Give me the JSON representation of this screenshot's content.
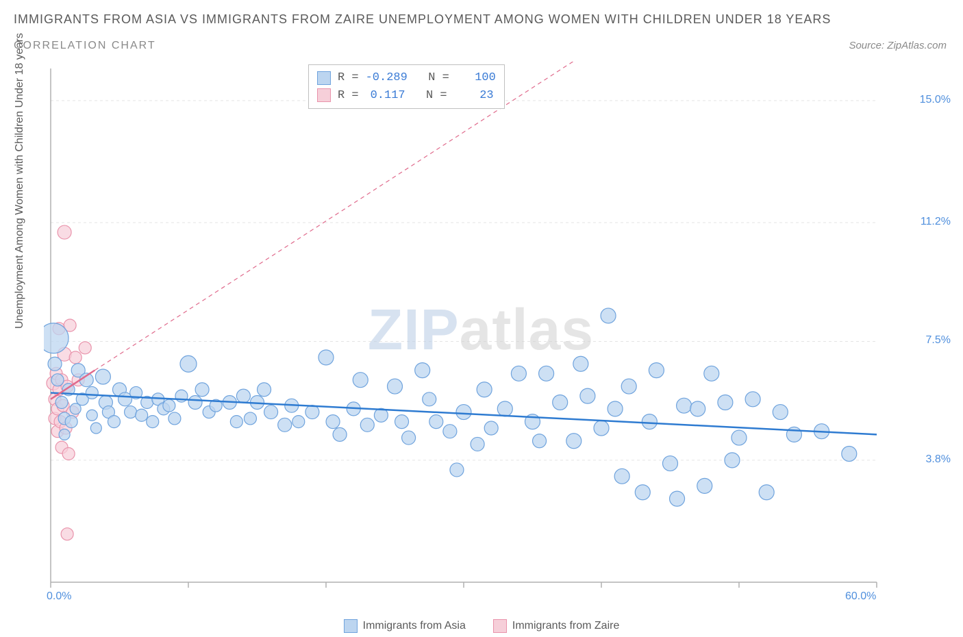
{
  "title": "IMMIGRANTS FROM ASIA VS IMMIGRANTS FROM ZAIRE UNEMPLOYMENT AMONG WOMEN WITH CHILDREN UNDER 18 YEARS",
  "subtitle": "CORRELATION CHART",
  "source": "Source: ZipAtlas.com",
  "y_axis_label": "Unemployment Among Women with Children Under 18 years",
  "watermark": {
    "part1": "ZIP",
    "part2": "atlas"
  },
  "chart": {
    "type": "scatter",
    "background_color": "#ffffff",
    "grid_color": "#e5e5e5",
    "axis_color": "#b0b0b0",
    "xlim": [
      0,
      60
    ],
    "ylim": [
      0,
      16
    ],
    "x_ticks": [
      0,
      10,
      20,
      30,
      40,
      50,
      60
    ],
    "x_tick_labels": [
      "0.0%",
      "",
      "",
      "",
      "",
      "",
      "60.0%"
    ],
    "y_ticks": [
      3.8,
      7.5,
      11.2,
      15.0
    ],
    "y_tick_labels": [
      "3.8%",
      "7.5%",
      "11.2%",
      "15.0%"
    ],
    "tick_label_color": "#4f8fdd",
    "tick_label_fontsize": 16,
    "series": [
      {
        "name": "Immigrants from Asia",
        "marker_fill": "#bcd5f0",
        "marker_stroke": "#6fa3dd",
        "marker_opacity": 0.75,
        "line_color": "#2e7bd1",
        "line_width": 2.5,
        "line_dash": "none",
        "trend": {
          "x1": 0,
          "y1": 5.9,
          "x2": 60,
          "y2": 4.6
        },
        "R": "-0.289",
        "N": "100",
        "points": [
          {
            "x": 0.2,
            "y": 7.6,
            "r": 22
          },
          {
            "x": 0.5,
            "y": 6.3,
            "r": 9
          },
          {
            "x": 0.8,
            "y": 5.6,
            "r": 9
          },
          {
            "x": 0.3,
            "y": 6.8,
            "r": 10
          },
          {
            "x": 1.0,
            "y": 5.1,
            "r": 9
          },
          {
            "x": 1.0,
            "y": 4.6,
            "r": 8
          },
          {
            "x": 1.3,
            "y": 6.0,
            "r": 9
          },
          {
            "x": 1.5,
            "y": 5.0,
            "r": 9
          },
          {
            "x": 1.8,
            "y": 5.4,
            "r": 8
          },
          {
            "x": 2.0,
            "y": 6.6,
            "r": 10
          },
          {
            "x": 2.3,
            "y": 5.7,
            "r": 9
          },
          {
            "x": 2.6,
            "y": 6.3,
            "r": 10
          },
          {
            "x": 3.0,
            "y": 5.9,
            "r": 9
          },
          {
            "x": 3.0,
            "y": 5.2,
            "r": 8
          },
          {
            "x": 3.3,
            "y": 4.8,
            "r": 8
          },
          {
            "x": 3.8,
            "y": 6.4,
            "r": 11
          },
          {
            "x": 4.0,
            "y": 5.6,
            "r": 10
          },
          {
            "x": 4.2,
            "y": 5.3,
            "r": 9
          },
          {
            "x": 4.6,
            "y": 5.0,
            "r": 9
          },
          {
            "x": 5.0,
            "y": 6.0,
            "r": 10
          },
          {
            "x": 5.4,
            "y": 5.7,
            "r": 10
          },
          {
            "x": 5.8,
            "y": 5.3,
            "r": 9
          },
          {
            "x": 6.2,
            "y": 5.9,
            "r": 9
          },
          {
            "x": 6.6,
            "y": 5.2,
            "r": 9
          },
          {
            "x": 7.0,
            "y": 5.6,
            "r": 9
          },
          {
            "x": 7.4,
            "y": 5.0,
            "r": 9
          },
          {
            "x": 7.8,
            "y": 5.7,
            "r": 9
          },
          {
            "x": 8.2,
            "y": 5.4,
            "r": 9
          },
          {
            "x": 8.6,
            "y": 5.5,
            "r": 9
          },
          {
            "x": 9.0,
            "y": 5.1,
            "r": 9
          },
          {
            "x": 9.5,
            "y": 5.8,
            "r": 9
          },
          {
            "x": 10.0,
            "y": 6.8,
            "r": 12
          },
          {
            "x": 10.5,
            "y": 5.6,
            "r": 10
          },
          {
            "x": 11.0,
            "y": 6.0,
            "r": 10
          },
          {
            "x": 11.5,
            "y": 5.3,
            "r": 9
          },
          {
            "x": 12.0,
            "y": 5.5,
            "r": 9
          },
          {
            "x": 13.0,
            "y": 5.6,
            "r": 10
          },
          {
            "x": 13.5,
            "y": 5.0,
            "r": 9
          },
          {
            "x": 14.0,
            "y": 5.8,
            "r": 10
          },
          {
            "x": 14.5,
            "y": 5.1,
            "r": 9
          },
          {
            "x": 15.0,
            "y": 5.6,
            "r": 10
          },
          {
            "x": 15.5,
            "y": 6.0,
            "r": 10
          },
          {
            "x": 16.0,
            "y": 5.3,
            "r": 10
          },
          {
            "x": 17.0,
            "y": 4.9,
            "r": 10
          },
          {
            "x": 17.5,
            "y": 5.5,
            "r": 10
          },
          {
            "x": 18.0,
            "y": 5.0,
            "r": 9
          },
          {
            "x": 19.0,
            "y": 5.3,
            "r": 10
          },
          {
            "x": 20.0,
            "y": 7.0,
            "r": 11
          },
          {
            "x": 20.5,
            "y": 5.0,
            "r": 10
          },
          {
            "x": 21.0,
            "y": 4.6,
            "r": 10
          },
          {
            "x": 22.0,
            "y": 5.4,
            "r": 10
          },
          {
            "x": 22.5,
            "y": 6.3,
            "r": 11
          },
          {
            "x": 23.0,
            "y": 4.9,
            "r": 10
          },
          {
            "x": 24.0,
            "y": 5.2,
            "r": 10
          },
          {
            "x": 25.0,
            "y": 6.1,
            "r": 11
          },
          {
            "x": 25.5,
            "y": 5.0,
            "r": 10
          },
          {
            "x": 26.0,
            "y": 4.5,
            "r": 10
          },
          {
            "x": 27.0,
            "y": 6.6,
            "r": 11
          },
          {
            "x": 27.5,
            "y": 5.7,
            "r": 10
          },
          {
            "x": 28.0,
            "y": 5.0,
            "r": 10
          },
          {
            "x": 29.0,
            "y": 4.7,
            "r": 10
          },
          {
            "x": 29.5,
            "y": 3.5,
            "r": 10
          },
          {
            "x": 30.0,
            "y": 5.3,
            "r": 11
          },
          {
            "x": 31.0,
            "y": 4.3,
            "r": 10
          },
          {
            "x": 31.5,
            "y": 6.0,
            "r": 11
          },
          {
            "x": 32.0,
            "y": 4.8,
            "r": 10
          },
          {
            "x": 33.0,
            "y": 5.4,
            "r": 11
          },
          {
            "x": 34.0,
            "y": 6.5,
            "r": 11
          },
          {
            "x": 35.0,
            "y": 5.0,
            "r": 11
          },
          {
            "x": 35.5,
            "y": 4.4,
            "r": 10
          },
          {
            "x": 36.0,
            "y": 6.5,
            "r": 11
          },
          {
            "x": 37.0,
            "y": 5.6,
            "r": 11
          },
          {
            "x": 38.0,
            "y": 4.4,
            "r": 11
          },
          {
            "x": 38.5,
            "y": 6.8,
            "r": 11
          },
          {
            "x": 39.0,
            "y": 5.8,
            "r": 11
          },
          {
            "x": 40.0,
            "y": 4.8,
            "r": 11
          },
          {
            "x": 40.5,
            "y": 8.3,
            "r": 11
          },
          {
            "x": 41.0,
            "y": 5.4,
            "r": 11
          },
          {
            "x": 41.5,
            "y": 3.3,
            "r": 11
          },
          {
            "x": 42.0,
            "y": 6.1,
            "r": 11
          },
          {
            "x": 43.0,
            "y": 2.8,
            "r": 11
          },
          {
            "x": 43.5,
            "y": 5.0,
            "r": 11
          },
          {
            "x": 44.0,
            "y": 6.6,
            "r": 11
          },
          {
            "x": 45.0,
            "y": 3.7,
            "r": 11
          },
          {
            "x": 45.5,
            "y": 2.6,
            "r": 11
          },
          {
            "x": 46.0,
            "y": 5.5,
            "r": 11
          },
          {
            "x": 47.0,
            "y": 5.4,
            "r": 11
          },
          {
            "x": 47.5,
            "y": 3.0,
            "r": 11
          },
          {
            "x": 48.0,
            "y": 6.5,
            "r": 11
          },
          {
            "x": 49.0,
            "y": 5.6,
            "r": 11
          },
          {
            "x": 49.5,
            "y": 3.8,
            "r": 11
          },
          {
            "x": 50.0,
            "y": 4.5,
            "r": 11
          },
          {
            "x": 51.0,
            "y": 5.7,
            "r": 11
          },
          {
            "x": 52.0,
            "y": 2.8,
            "r": 11
          },
          {
            "x": 53.0,
            "y": 5.3,
            "r": 11
          },
          {
            "x": 54.0,
            "y": 4.6,
            "r": 11
          },
          {
            "x": 56.0,
            "y": 4.7,
            "r": 11
          },
          {
            "x": 58.0,
            "y": 4.0,
            "r": 11
          }
        ]
      },
      {
        "name": "Immigrants from Zaire",
        "marker_fill": "#f6cfd9",
        "marker_stroke": "#e993ab",
        "marker_opacity": 0.72,
        "line_color": "#e06a8c",
        "line_width": 2.5,
        "line_dash": "6,5",
        "trend": {
          "x1": 0,
          "y1": 5.7,
          "x2": 3.2,
          "y2": 6.6
        },
        "trend_extend": {
          "x1": 3.2,
          "y1": 6.6,
          "x2": 48,
          "y2": 19
        },
        "R": "0.117",
        "N": "23",
        "points": [
          {
            "x": 0.2,
            "y": 6.2,
            "r": 10
          },
          {
            "x": 0.3,
            "y": 5.7,
            "r": 9
          },
          {
            "x": 0.3,
            "y": 5.1,
            "r": 9
          },
          {
            "x": 0.4,
            "y": 6.5,
            "r": 9
          },
          {
            "x": 0.5,
            "y": 5.4,
            "r": 9
          },
          {
            "x": 0.5,
            "y": 4.7,
            "r": 9
          },
          {
            "x": 0.6,
            "y": 6.0,
            "r": 9
          },
          {
            "x": 0.6,
            "y": 7.9,
            "r": 9
          },
          {
            "x": 0.7,
            "y": 5.0,
            "r": 9
          },
          {
            "x": 0.8,
            "y": 4.2,
            "r": 9
          },
          {
            "x": 0.8,
            "y": 6.3,
            "r": 9
          },
          {
            "x": 0.9,
            "y": 5.5,
            "r": 9
          },
          {
            "x": 1.0,
            "y": 10.9,
            "r": 10
          },
          {
            "x": 1.0,
            "y": 7.1,
            "r": 10
          },
          {
            "x": 1.1,
            "y": 4.8,
            "r": 9
          },
          {
            "x": 1.2,
            "y": 6.1,
            "r": 9
          },
          {
            "x": 1.3,
            "y": 4.0,
            "r": 9
          },
          {
            "x": 1.4,
            "y": 8.0,
            "r": 9
          },
          {
            "x": 1.6,
            "y": 5.3,
            "r": 9
          },
          {
            "x": 1.8,
            "y": 7.0,
            "r": 9
          },
          {
            "x": 2.0,
            "y": 6.3,
            "r": 9
          },
          {
            "x": 2.5,
            "y": 7.3,
            "r": 9
          },
          {
            "x": 1.2,
            "y": 1.5,
            "r": 9
          }
        ]
      }
    ]
  },
  "bottom_legend": [
    {
      "label": "Immigrants from Asia",
      "fill": "#bcd5f0",
      "stroke": "#6fa3dd"
    },
    {
      "label": "Immigrants from Zaire",
      "fill": "#f6cfd9",
      "stroke": "#e993ab"
    }
  ]
}
